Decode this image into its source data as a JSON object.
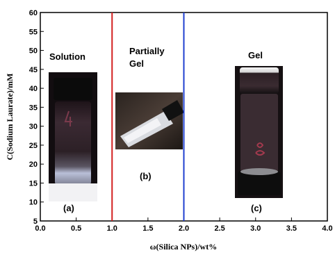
{
  "chart_data": {
    "type": "scatter",
    "title": "",
    "xlabel": "ω(Silica NPs)/wt%",
    "ylabel": "C(Sodium Laurate)/mM",
    "xlim": [
      0.0,
      4.0
    ],
    "ylim": [
      5,
      60
    ],
    "x_ticks": [
      "0.0",
      "0.5",
      "1.0",
      "1.5",
      "2.0",
      "2.5",
      "3.0",
      "3.5",
      "4.0"
    ],
    "y_ticks": [
      "5",
      "10",
      "15",
      "20",
      "25",
      "30",
      "35",
      "40",
      "45",
      "50",
      "55",
      "60"
    ],
    "grid": false,
    "boundaries": [
      {
        "x": 1.0,
        "color": "#d42020"
      },
      {
        "x": 2.0,
        "color": "#1f3fcf"
      }
    ],
    "regions": [
      {
        "label": "Solution",
        "panel": "(a)"
      },
      {
        "label_lines": [
          "Partially",
          "Gel"
        ],
        "panel": "(b)"
      },
      {
        "label": "Gel",
        "panel": "(c)"
      }
    ]
  }
}
